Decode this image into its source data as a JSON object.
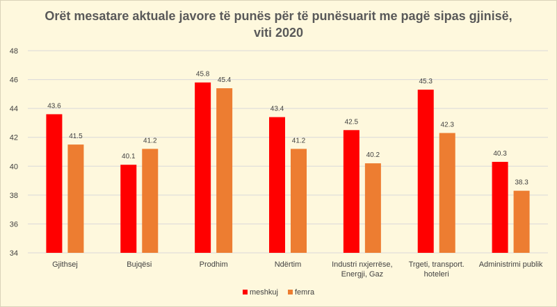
{
  "chart_data": {
    "type": "bar",
    "title_line1": "Orët mesatare aktuale javore të punës për të punësuarit me pagë sipas gjinisë,",
    "title_line2": "viti 2020",
    "categories": [
      [
        "Gjithsej"
      ],
      [
        "Bujqësi"
      ],
      [
        "Prodhim"
      ],
      [
        "Ndërtim"
      ],
      [
        "Industri nxjerrëse,",
        "Energji, Gaz"
      ],
      [
        "Trgeti, transport.",
        "hoteleri"
      ],
      [
        "Administrimi publik"
      ]
    ],
    "series": [
      {
        "name": "meshkuj",
        "color": "#ff0000",
        "values": [
          43.6,
          40.1,
          45.8,
          43.4,
          42.5,
          45.3,
          40.3
        ]
      },
      {
        "name": "femra",
        "color": "#ed7d31",
        "values": [
          41.5,
          41.2,
          45.4,
          41.2,
          40.2,
          42.3,
          38.3
        ]
      }
    ],
    "ylim": [
      34,
      48
    ],
    "yticks": [
      34,
      36,
      38,
      40,
      42,
      44,
      46,
      48
    ],
    "grid": true,
    "legend_position": "bottom"
  }
}
